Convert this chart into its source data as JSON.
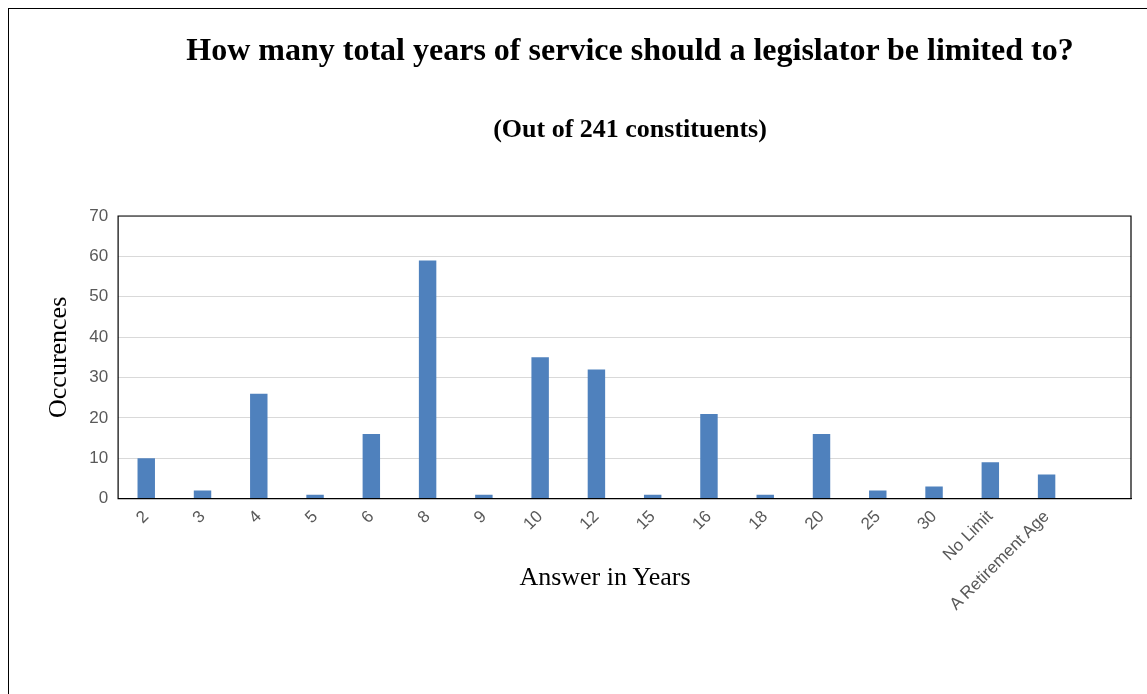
{
  "chart_data": {
    "type": "bar",
    "title": "How many total years of service should a legislator be limited to?",
    "subtitle": "(Out of 241 constituents)",
    "xlabel": "Answer in Years",
    "ylabel": "Occurences",
    "categories": [
      "2",
      "3",
      "4",
      "5",
      "6",
      "8",
      "9",
      "10",
      "12",
      "15",
      "16",
      "18",
      "20",
      "25",
      "30",
      "No Limit",
      "A Retirement Age",
      null
    ],
    "values": [
      10,
      2,
      26,
      1,
      16,
      59,
      1,
      35,
      32,
      1,
      21,
      1,
      16,
      2,
      3,
      9,
      6,
      null
    ],
    "color": "#4f81bd",
    "ylim": [
      0,
      70
    ],
    "yticks": [
      0,
      10,
      20,
      30,
      40,
      50,
      60,
      70
    ],
    "grid": "y"
  }
}
